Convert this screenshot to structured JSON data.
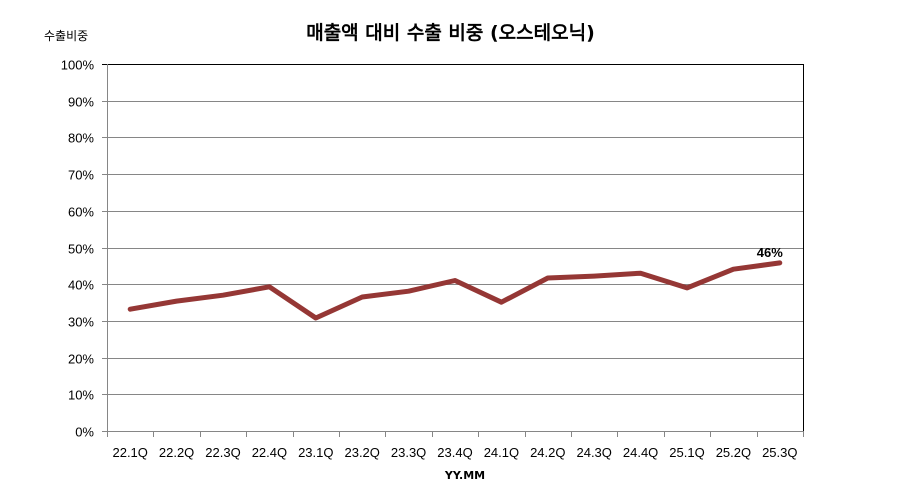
{
  "chart_data": {
    "type": "line",
    "title": "매출액 대비 수출 비중 (오스테오닉)",
    "ylabel": "수출비중",
    "xlabel": "YY.MM",
    "categories": [
      "22.1Q",
      "22.2Q",
      "22.3Q",
      "22.4Q",
      "23.1Q",
      "23.2Q",
      "23.3Q",
      "23.4Q",
      "24.1Q",
      "24.2Q",
      "24.3Q",
      "24.4Q",
      "25.1Q",
      "25.2Q",
      "25.3Q"
    ],
    "series": [
      {
        "name": "수출비중",
        "color": "#953735",
        "values": [
          33.2,
          35.4,
          37.0,
          39.3,
          30.8,
          36.5,
          38.1,
          41.0,
          35.1,
          41.7,
          42.2,
          43.0,
          39.0,
          44.1,
          45.8
        ]
      }
    ],
    "annotations": [
      {
        "category": "25.3Q",
        "text": "46%"
      }
    ],
    "ylim": [
      0,
      100
    ],
    "yticks": [
      "0%",
      "10%",
      "20%",
      "30%",
      "40%",
      "50%",
      "60%",
      "70%",
      "80%",
      "90%",
      "100%"
    ],
    "grid": true,
    "legend": "none"
  }
}
